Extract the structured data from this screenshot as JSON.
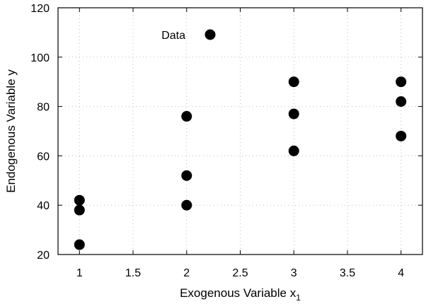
{
  "chart_data": {
    "type": "scatter",
    "xlabel": "Exogenous Variable x",
    "xlabel_subscript": "1",
    "ylabel": "Endogenous Variable y",
    "xlim": [
      0.8,
      4.2
    ],
    "ylim": [
      20,
      120
    ],
    "xticks": [
      1,
      1.5,
      2,
      2.5,
      3,
      3.5,
      4
    ],
    "yticks": [
      20,
      40,
      60,
      80,
      100,
      120
    ],
    "grid": true,
    "legend_position": "top-center",
    "marker_color": "#000000",
    "series": [
      {
        "name": "Data",
        "points": [
          [
            1,
            24
          ],
          [
            1,
            38
          ],
          [
            1,
            42
          ],
          [
            2,
            40
          ],
          [
            2,
            52
          ],
          [
            2,
            76
          ],
          [
            3,
            62
          ],
          [
            3,
            77
          ],
          [
            3,
            90
          ],
          [
            4,
            68
          ],
          [
            4,
            82
          ],
          [
            4,
            90
          ]
        ]
      }
    ]
  }
}
